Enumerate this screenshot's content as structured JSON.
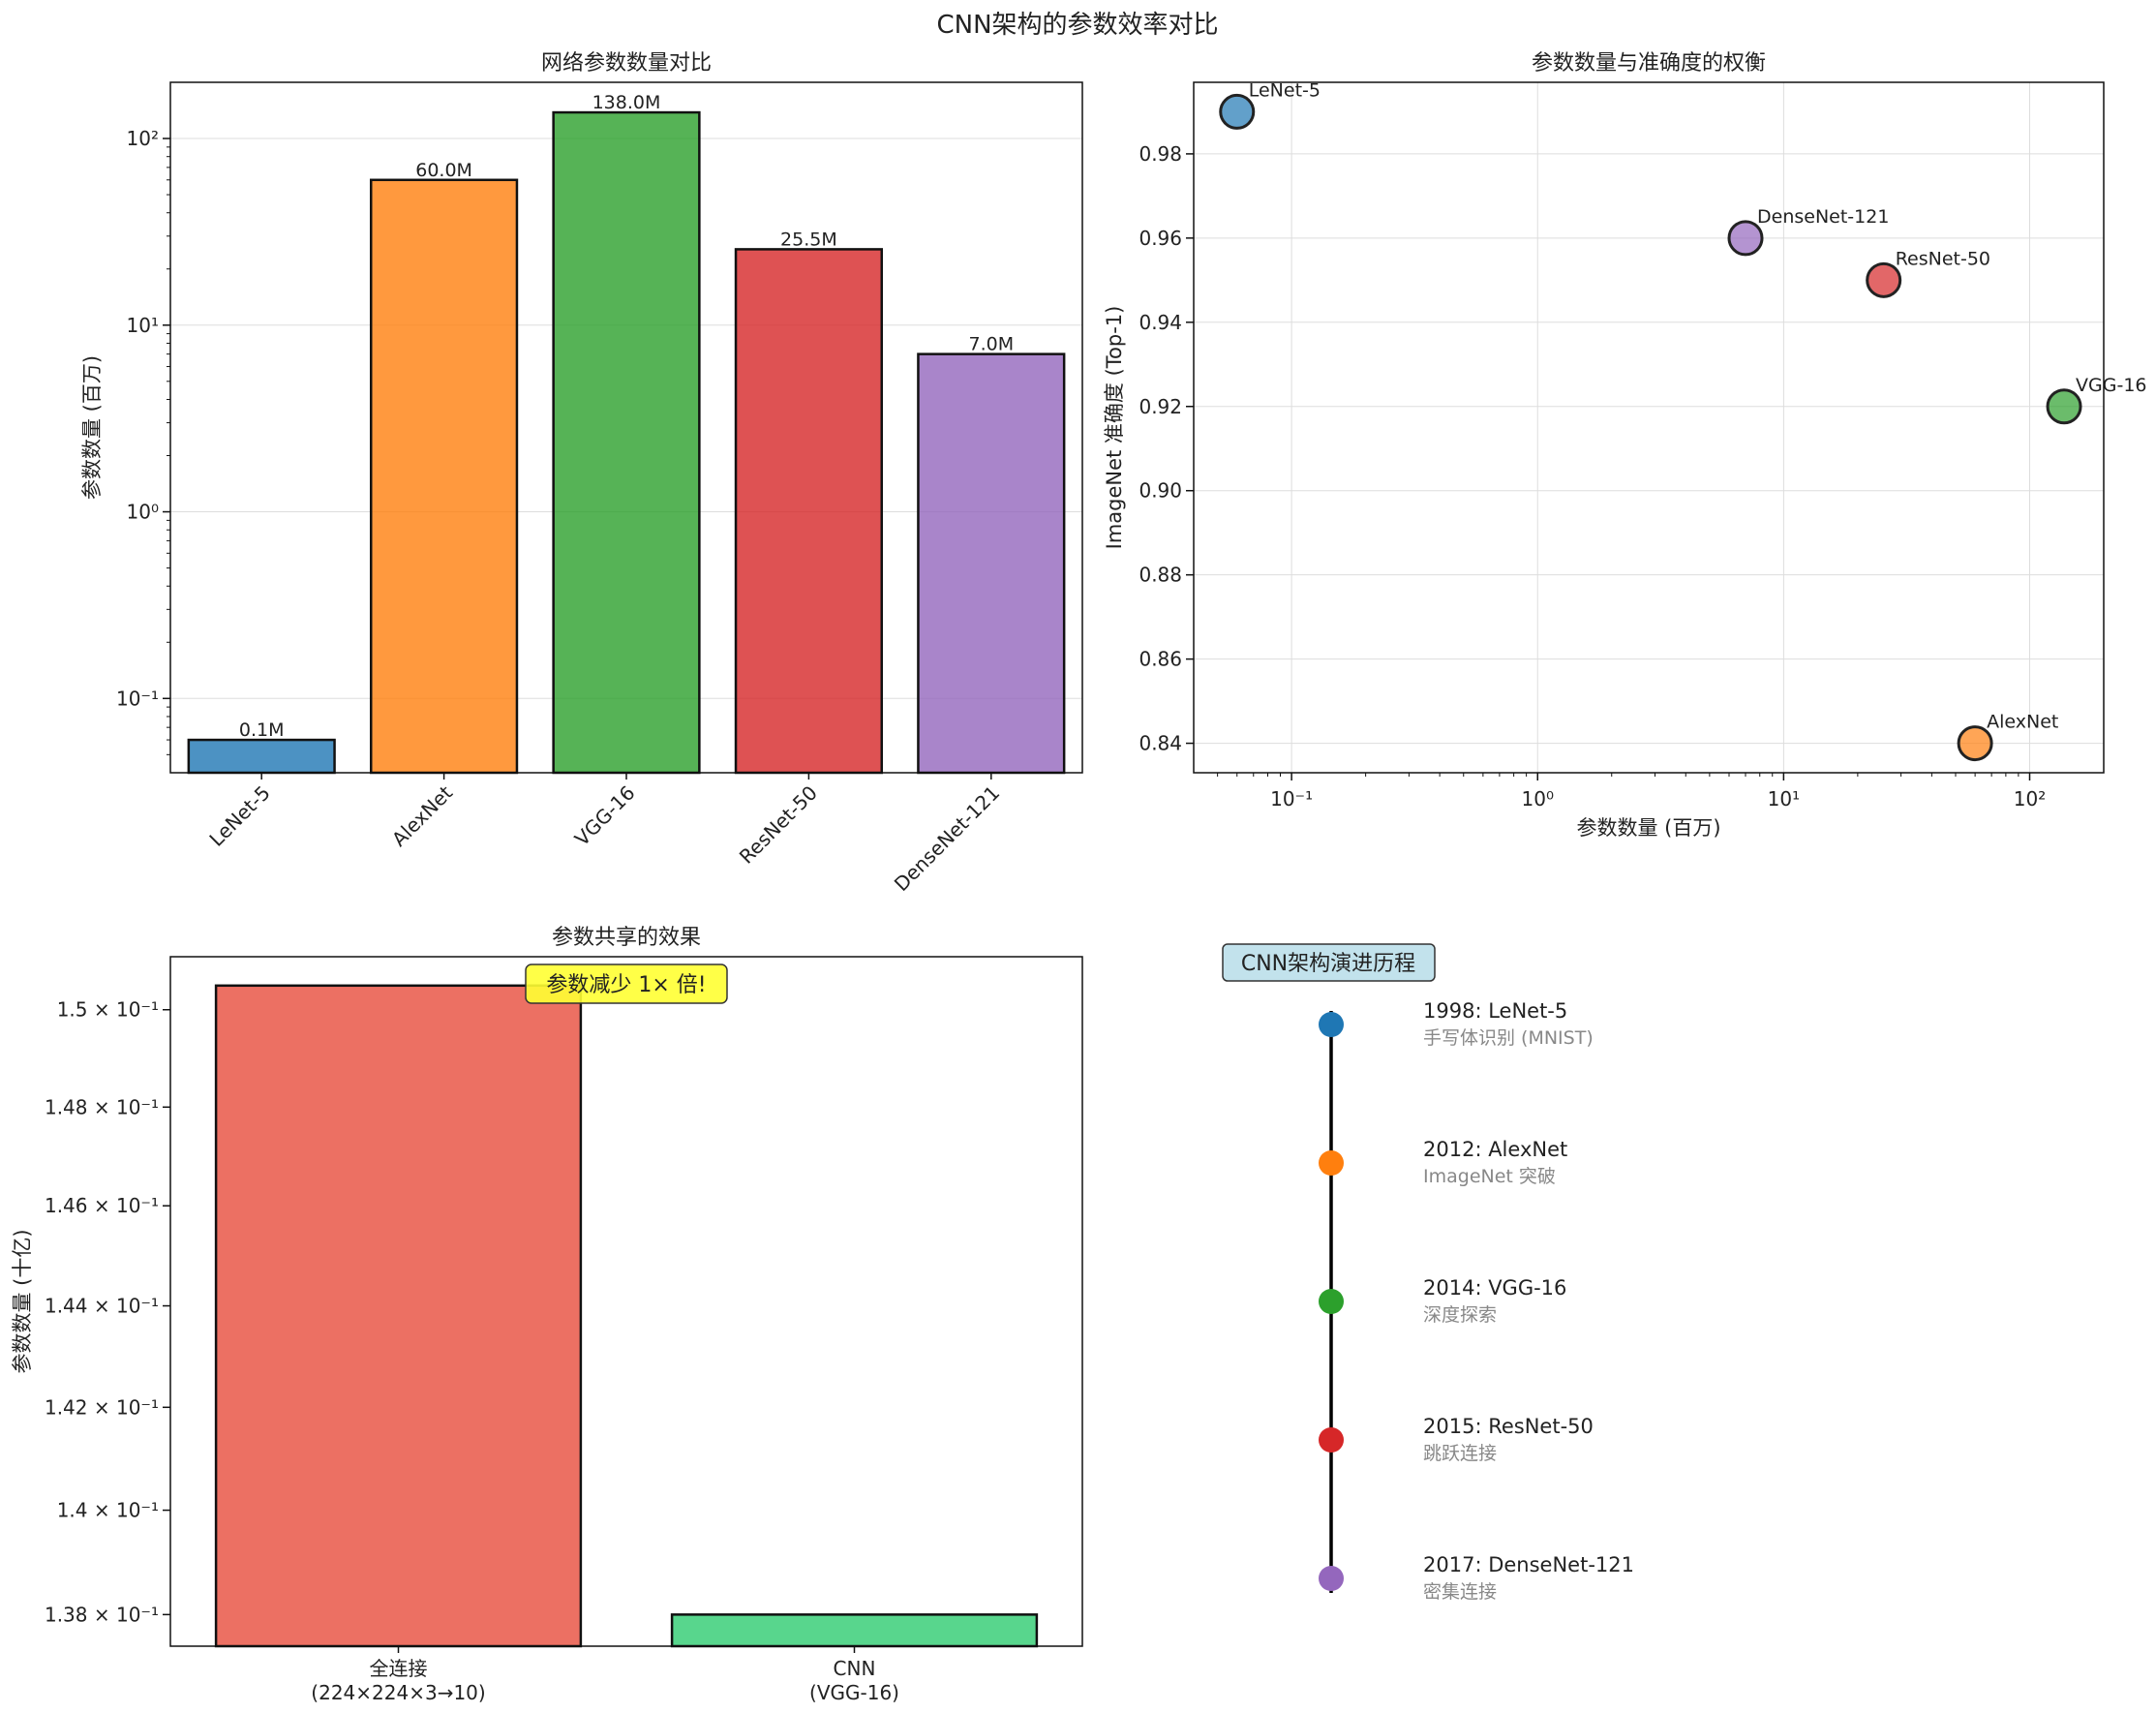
{
  "figure": {
    "suptitle": "CNN架构的参数效率对比"
  },
  "chart_data": [
    {
      "type": "bar",
      "title": "网络参数数量对比",
      "ylabel": "参数数量 (百万)",
      "yscale": "log",
      "ylim": [
        0.04,
        200
      ],
      "yticks": [
        {
          "label": "10⁻¹"
        },
        {
          "label": "10⁰"
        },
        {
          "label": "10¹"
        },
        {
          "label": "10²"
        }
      ],
      "categories": [
        "LeNet-5",
        "AlexNet",
        "VGG-16",
        "ResNet-50",
        "DenseNet-121"
      ],
      "values": [
        0.06,
        60.0,
        138.0,
        25.5,
        7.0
      ],
      "value_labels": [
        "0.1M",
        "60.0M",
        "138.0M",
        "25.5M",
        "7.0M"
      ],
      "colors": [
        "#1f77b4",
        "#ff7f0e",
        "#2ca02c",
        "#d62728",
        "#9467bd"
      ]
    },
    {
      "type": "scatter",
      "title": "参数数量与准确度的权衡",
      "xlabel": "参数数量 (百万)",
      "ylabel": "ImageNet 准确度 (Top-1)",
      "xscale": "log",
      "xlim": [
        0.04,
        200
      ],
      "ylim": [
        0.833,
        0.997
      ],
      "xticks": [
        {
          "label": "10⁻¹"
        },
        {
          "label": "10⁰"
        },
        {
          "label": "10¹"
        },
        {
          "label": "10²"
        }
      ],
      "yticks": [
        "0.84",
        "0.86",
        "0.88",
        "0.90",
        "0.92",
        "0.94",
        "0.96",
        "0.98"
      ],
      "points": [
        {
          "name": "LeNet-5",
          "x": 0.06,
          "y": 0.99,
          "color": "#1f77b4"
        },
        {
          "name": "AlexNet",
          "x": 60.0,
          "y": 0.84,
          "color": "#ff7f0e"
        },
        {
          "name": "VGG-16",
          "x": 138.0,
          "y": 0.92,
          "color": "#2ca02c"
        },
        {
          "name": "ResNet-50",
          "x": 25.5,
          "y": 0.95,
          "color": "#d62728"
        },
        {
          "name": "DenseNet-121",
          "x": 7.0,
          "y": 0.96,
          "color": "#9467bd"
        }
      ]
    },
    {
      "type": "bar",
      "title": "参数共享的效果",
      "ylabel": "参数数量 (十亿)",
      "yscale": "log",
      "ylim": [
        0.1374,
        0.1511
      ],
      "yticks": [
        {
          "label": "1.38 × 10⁻¹"
        },
        {
          "label": "1.4 × 10⁻¹"
        },
        {
          "label": "1.42 × 10⁻¹"
        },
        {
          "label": "1.44 × 10⁻¹"
        },
        {
          "label": "1.46 × 10⁻¹"
        },
        {
          "label": "1.48 × 10⁻¹"
        },
        {
          "label": "1.5 × 10⁻¹"
        }
      ],
      "categories": [
        {
          "line1": "全连接",
          "line2": "(224×224×3→10)"
        },
        {
          "line1": "CNN",
          "line2": "(VGG-16)"
        }
      ],
      "values": [
        0.1505,
        0.138
      ],
      "colors": [
        "#e74c3c",
        "#2ecc71"
      ],
      "annotation": "参数减少 1× 倍!"
    },
    {
      "type": "timeline",
      "title": "CNN架构演进历程",
      "events": [
        {
          "label": "1998: LeNet-5",
          "desc": "手写体识别 (MNIST)",
          "color": "#1f77b4"
        },
        {
          "label": "2012: AlexNet",
          "desc": "ImageNet 突破",
          "color": "#ff7f0e"
        },
        {
          "label": "2014: VGG-16",
          "desc": "深度探索",
          "color": "#2ca02c"
        },
        {
          "label": "2015: ResNet-50",
          "desc": "跳跃连接",
          "color": "#d62728"
        },
        {
          "label": "2017: DenseNet-121",
          "desc": "密集连接",
          "color": "#9467bd"
        }
      ]
    }
  ]
}
